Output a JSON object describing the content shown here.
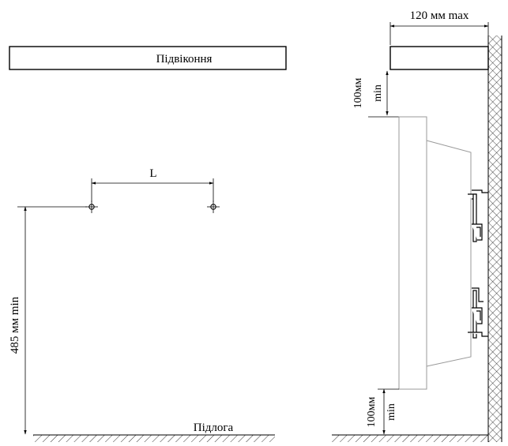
{
  "labels": {
    "windowsill": "Підвіконня",
    "distance": "L",
    "height_from_floor": "485 мм min",
    "floor": "Підлога",
    "max_depth": "120 мм max",
    "gap_top_value": "100мм",
    "gap_top_min": "min",
    "gap_bottom_value": "100мм",
    "gap_bottom_min": "min"
  }
}
